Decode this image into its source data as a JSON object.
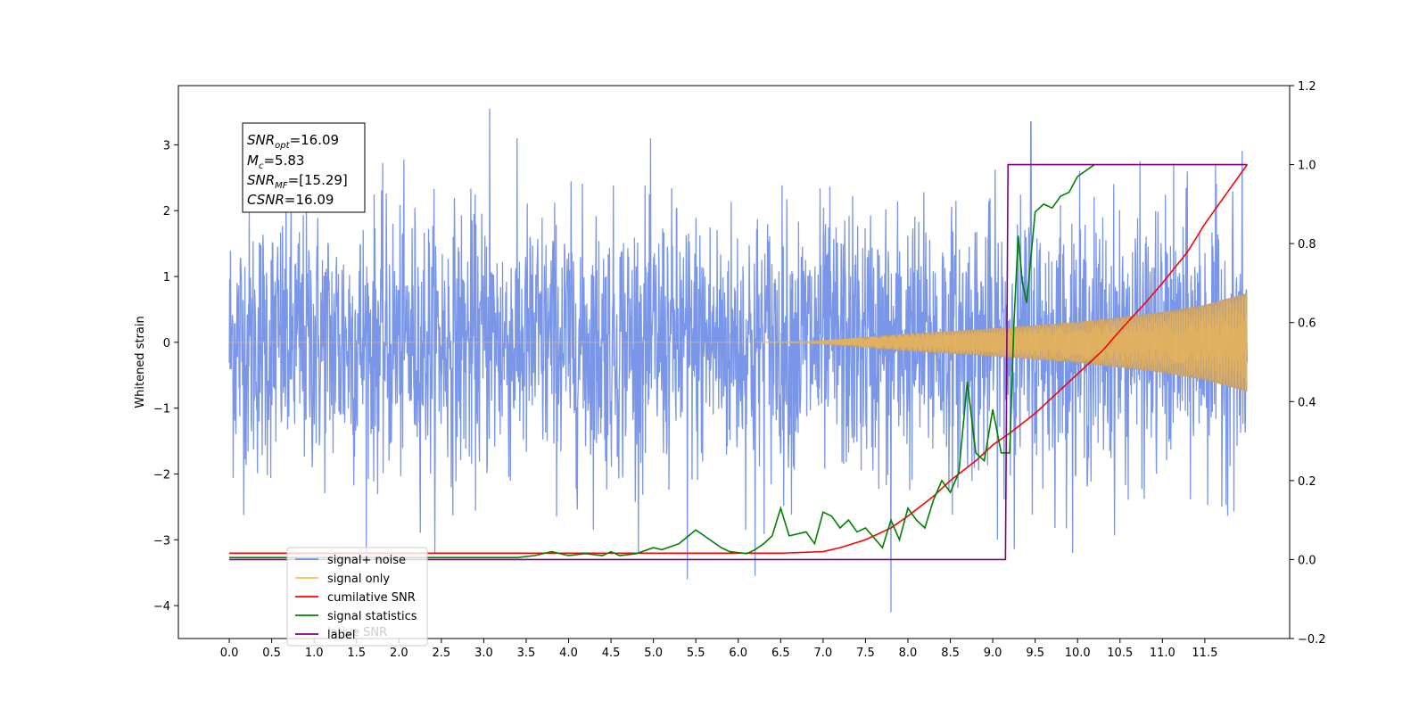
{
  "chart_data": {
    "type": "line",
    "title": "",
    "xlabel": "",
    "ylabel": "Whitened strain",
    "xlim": [
      -0.6,
      12.5
    ],
    "ylim": [
      -4.5,
      3.9
    ],
    "y2lim": [
      -0.2,
      1.2
    ],
    "grid": false,
    "x_ticks": [
      0.0,
      0.5,
      1.0,
      1.5,
      2.0,
      2.5,
      3.0,
      3.5,
      4.0,
      4.5,
      5.0,
      5.5,
      6.0,
      6.5,
      7.0,
      7.5,
      8.0,
      8.5,
      9.0,
      9.5,
      10.0,
      10.5,
      11.0,
      11.5
    ],
    "x_tick_labels": [
      "0.0",
      "0.5",
      "1.0",
      "1.5",
      "2.0",
      "2.5",
      "3.0",
      "3.5",
      "4.0",
      "4.5",
      "5.0",
      "5.5",
      "6.0",
      "6.5",
      "7.0",
      "7.5",
      "8.0",
      "8.5",
      "9.0",
      "9.5",
      "10.0",
      "10.5",
      "11.0",
      "11.5"
    ],
    "y_ticks": [
      3,
      2,
      1,
      0,
      -1,
      -2,
      -3,
      -4
    ],
    "y_tick_labels": [
      "3",
      "2",
      "1",
      "0",
      "−1",
      "−2",
      "−3",
      "−4"
    ],
    "y2_ticks": [
      1.2,
      1.0,
      0.8,
      0.6,
      0.4,
      0.2,
      0.0,
      -0.2
    ],
    "y2_tick_labels": [
      "1.2",
      "1.0",
      "0.8",
      "0.6",
      "0.4",
      "0.2",
      "0.0",
      "−0.2"
    ],
    "annotation": {
      "lines": [
        {
          "base": "SNR",
          "sub": "opt",
          "value": "=16.09"
        },
        {
          "base": "M",
          "sub": "c",
          "value": "=5.83"
        },
        {
          "base": "SNR",
          "sub": "MF",
          "value": "=[15.29]"
        },
        {
          "base": "CSNR",
          "sub": "",
          "value": "=16.09"
        }
      ]
    },
    "legend": {
      "position": "lower-left",
      "entries": [
        {
          "label": "signal+ noise",
          "color": "#6f8de6"
        },
        {
          "label": "signal only",
          "color": "#ffc04d"
        },
        {
          "label": "cumilative SNR",
          "color": "#ff0000"
        },
        {
          "label": "signal statistics",
          "color": "#008000"
        },
        {
          "label": "label",
          "color": "#800080"
        }
      ],
      "overflow_text": "lative SNR"
    },
    "series": [
      {
        "name": "signal+ noise",
        "axis": "left",
        "color": "#6f8de6",
        "x_range": [
          0.0,
          12.0
        ],
        "noise_sigma": 1.0,
        "notable_peaks": [
          {
            "x": 3.07,
            "y": 3.55
          },
          {
            "x": 9.45,
            "y": 3.35
          },
          {
            "x": 7.8,
            "y": -4.1
          },
          {
            "x": 5.4,
            "y": -3.6
          },
          {
            "x": 6.2,
            "y": -3.55
          }
        ]
      },
      {
        "name": "signal only",
        "axis": "left",
        "color": "#ffc04d",
        "envelope": {
          "x": [
            0.0,
            6.0,
            6.8,
            7.2,
            7.6,
            8.0,
            8.5,
            9.0,
            9.5,
            10.0,
            10.5,
            11.0,
            11.5,
            12.0
          ],
          "amplitude": [
            0.0,
            0.0,
            0.01,
            0.05,
            0.09,
            0.13,
            0.17,
            0.21,
            0.26,
            0.31,
            0.38,
            0.46,
            0.57,
            0.75
          ]
        }
      },
      {
        "name": "cumilative SNR",
        "axis": "right",
        "color": "#ff0000",
        "x": [
          0.0,
          6.5,
          7.0,
          7.2,
          7.5,
          7.8,
          8.0,
          8.3,
          8.5,
          8.8,
          9.0,
          9.2,
          9.5,
          9.8,
          10.0,
          10.3,
          10.5,
          10.8,
          11.0,
          11.3,
          11.5,
          11.8,
          12.0
        ],
        "values": [
          0.016,
          0.016,
          0.02,
          0.03,
          0.05,
          0.08,
          0.11,
          0.16,
          0.2,
          0.25,
          0.29,
          0.32,
          0.37,
          0.43,
          0.47,
          0.53,
          0.58,
          0.65,
          0.7,
          0.78,
          0.85,
          0.94,
          1.0
        ]
      },
      {
        "name": "signal statistics",
        "axis": "right",
        "color": "#008000",
        "x": [
          0.0,
          3.4,
          3.6,
          3.8,
          4.0,
          4.2,
          4.4,
          4.5,
          4.6,
          4.8,
          5.0,
          5.1,
          5.3,
          5.5,
          5.6,
          5.8,
          5.9,
          6.1,
          6.2,
          6.3,
          6.4,
          6.5,
          6.6,
          6.8,
          6.9,
          7.0,
          7.1,
          7.2,
          7.3,
          7.4,
          7.5,
          7.7,
          7.8,
          7.9,
          8.0,
          8.1,
          8.2,
          8.3,
          8.4,
          8.5,
          8.6,
          8.7,
          8.8,
          8.9,
          9.0,
          9.1,
          9.2,
          9.25,
          9.3,
          9.35,
          9.4,
          9.5,
          9.6,
          9.7,
          9.8,
          9.9,
          10.0,
          10.2
        ],
        "values": [
          0.005,
          0.005,
          0.01,
          0.02,
          0.01,
          0.015,
          0.01,
          0.02,
          0.01,
          0.015,
          0.03,
          0.025,
          0.04,
          0.075,
          0.06,
          0.03,
          0.02,
          0.015,
          0.025,
          0.04,
          0.06,
          0.13,
          0.06,
          0.07,
          0.04,
          0.12,
          0.11,
          0.08,
          0.1,
          0.07,
          0.08,
          0.03,
          0.1,
          0.05,
          0.13,
          0.1,
          0.08,
          0.15,
          0.2,
          0.17,
          0.22,
          0.45,
          0.27,
          0.25,
          0.38,
          0.27,
          0.27,
          0.6,
          0.82,
          0.7,
          0.65,
          0.88,
          0.9,
          0.89,
          0.92,
          0.93,
          0.97,
          1.0
        ]
      },
      {
        "name": "label",
        "axis": "right",
        "color": "#800080",
        "x": [
          0.0,
          9.15,
          9.18,
          12.0
        ],
        "values": [
          0.0,
          0.0,
          1.0,
          1.0
        ]
      }
    ]
  }
}
